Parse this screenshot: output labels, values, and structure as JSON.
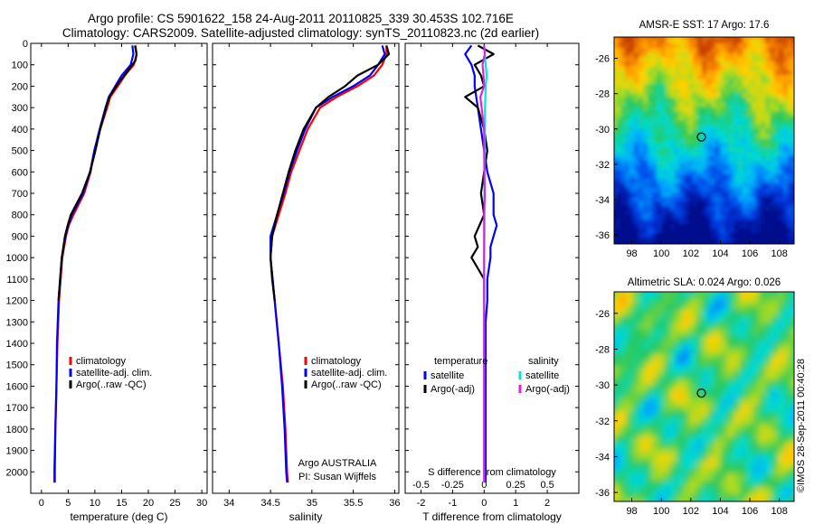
{
  "title": {
    "line1": "Argo profile: CS 5901622_158 24-Aug-2011 20110825_339 30.453S 102.716E",
    "line2": "Climatology: CARS2009. Satellite-adjusted climatology: synTS_20110823.nc (2d earlier)"
  },
  "credit": "©IMOS 28-Sep-2011 00:40:28",
  "colors": {
    "climatology": "#ff0000",
    "satellite": "#0000ff",
    "argo": "#000000",
    "sal_satellite": "#00e5e5",
    "sal_argo": "#e020e0"
  },
  "chart_data": [
    {
      "type": "line",
      "xlabel": "temperature (deg C)",
      "ylabel": "",
      "xlim": [
        -2,
        31
      ],
      "ylim": [
        2100,
        0
      ],
      "xticks": [
        0,
        5,
        10,
        15,
        20,
        25,
        30
      ],
      "yticks": [
        0,
        100,
        200,
        300,
        400,
        500,
        600,
        700,
        800,
        900,
        1000,
        1100,
        1200,
        1300,
        1400,
        1500,
        1600,
        1700,
        1800,
        1900,
        2000
      ],
      "legend": [
        "climatology",
        "satellite-adj. clim.",
        "Argo(..raw -QC)"
      ],
      "series": [
        {
          "name": "climatology",
          "color": "#ff0000",
          "depth": [
            10,
            50,
            100,
            150,
            200,
            250,
            300,
            400,
            500,
            600,
            700,
            800,
            850,
            900,
            1000,
            1200,
            1400,
            1600,
            1800,
            2000,
            2050
          ],
          "values": [
            17.6,
            17.8,
            17.3,
            15.6,
            14.3,
            12.9,
            12.3,
            11.0,
            9.9,
            9.2,
            8.0,
            6.0,
            5.1,
            4.6,
            3.9,
            3.3,
            3.0,
            2.8,
            2.6,
            2.4,
            2.4
          ]
        },
        {
          "name": "satellite-adj. clim.",
          "color": "#0000ff",
          "depth": [
            10,
            50,
            100,
            150,
            200,
            250,
            300,
            400,
            500,
            600,
            700,
            800,
            850,
            900,
            1000,
            1200,
            1400,
            1600,
            1800,
            2000,
            2050
          ],
          "values": [
            17.0,
            17.2,
            16.7,
            15.0,
            13.8,
            12.6,
            12.0,
            10.9,
            9.9,
            9.1,
            7.8,
            5.7,
            5.0,
            4.5,
            3.8,
            3.2,
            2.9,
            2.8,
            2.6,
            2.5,
            2.5
          ]
        },
        {
          "name": "Argo(..raw -QC)",
          "color": "#000000",
          "depth": [
            10,
            50,
            80,
            100,
            150,
            200,
            250,
            300,
            400,
            500,
            600,
            700,
            800,
            850,
            900,
            1000,
            1100,
            1200
          ],
          "values": [
            17.5,
            17.8,
            17.6,
            17.0,
            15.5,
            14.0,
            12.7,
            12.1,
            11.0,
            10.1,
            9.1,
            7.6,
            5.5,
            4.9,
            4.4,
            3.8,
            3.5,
            3.2
          ]
        }
      ]
    },
    {
      "type": "line",
      "xlabel": "salinity",
      "ylabel": "",
      "xlim": [
        33.8,
        36.05
      ],
      "ylim": [
        2100,
        0
      ],
      "xticks": [
        34,
        34.5,
        35,
        35.5,
        36
      ],
      "legend": [
        "climatology",
        "satellite-adj. clim.",
        "Argo(..raw -QC)"
      ],
      "notes": [
        "Argo AUSTRALIA",
        "PI: Susan Wijffels"
      ],
      "series": [
        {
          "name": "climatology",
          "color": "#ff0000",
          "depth": [
            10,
            50,
            100,
            150,
            200,
            250,
            300,
            400,
            500,
            600,
            700,
            800,
            900,
            1000,
            1200,
            1400,
            1600,
            1800,
            2000,
            2050
          ],
          "values": [
            35.9,
            35.9,
            35.85,
            35.75,
            35.55,
            35.3,
            35.1,
            34.95,
            34.85,
            34.75,
            34.68,
            34.6,
            34.52,
            34.5,
            34.55,
            34.6,
            34.65,
            34.68,
            34.7,
            34.71
          ]
        },
        {
          "name": "satellite-adj. clim.",
          "color": "#0000ff",
          "depth": [
            10,
            50,
            100,
            150,
            200,
            250,
            300,
            400,
            500,
            600,
            700,
            800,
            900,
            1000,
            1200,
            1400,
            1600,
            1800,
            2000,
            2050
          ],
          "values": [
            35.85,
            35.88,
            35.8,
            35.7,
            35.5,
            35.25,
            35.05,
            34.92,
            34.82,
            34.73,
            34.66,
            34.58,
            34.5,
            34.5,
            34.55,
            34.6,
            34.64,
            34.67,
            34.69,
            34.7
          ]
        },
        {
          "name": "Argo(..raw -QC)",
          "color": "#000000",
          "depth": [
            10,
            50,
            100,
            150,
            200,
            250,
            300,
            400,
            500,
            600,
            700,
            800,
            900,
            1000,
            1100,
            1200
          ],
          "values": [
            35.9,
            35.93,
            35.8,
            35.55,
            35.4,
            35.2,
            35.05,
            34.9,
            34.8,
            34.72,
            34.65,
            34.58,
            34.52,
            34.5,
            34.52,
            34.55
          ]
        }
      ]
    },
    {
      "type": "line",
      "xlabel": "T difference from climatology",
      "xlabel_top": "S difference from climatology",
      "xlim": [
        -2.5,
        3.0
      ],
      "ylim": [
        2100,
        0
      ],
      "xticks": [
        -2,
        -1,
        0,
        1,
        2
      ],
      "xticks_top": [
        -0.5,
        -0.25,
        0,
        0.25,
        0.5
      ],
      "legend_titles": [
        "temperature",
        "salinity"
      ],
      "legend": [
        "satellite",
        "Argo(-adj)",
        "satellite",
        "Argo(-adj)"
      ],
      "series": [
        {
          "name": "temperature satellite",
          "color": "#0000ff",
          "depth": [
            10,
            50,
            100,
            150,
            200,
            300,
            400,
            500,
            600,
            700,
            800,
            850,
            900,
            950,
            1000,
            1100,
            1200,
            1300,
            1400,
            1500,
            1600,
            1800,
            2000,
            2050
          ],
          "values": [
            -0.4,
            -0.6,
            -0.4,
            -0.3,
            -0.3,
            -0.2,
            -0.1,
            0.0,
            0.1,
            0.3,
            0.3,
            0.4,
            0.3,
            0.2,
            0.2,
            0.1,
            0.1,
            0.05,
            0.05,
            0.05,
            0.05,
            0.05,
            0.05,
            0.05
          ]
        },
        {
          "name": "temperature Argo(-adj)",
          "color": "#000000",
          "depth": [
            10,
            50,
            100,
            150,
            200,
            250,
            300,
            400,
            500,
            600,
            700,
            800,
            900,
            950,
            1000,
            1050,
            1100,
            1200
          ],
          "values": [
            -0.2,
            0.3,
            -0.3,
            -0.1,
            0.0,
            -0.6,
            -0.2,
            0.0,
            0.1,
            0.0,
            -0.1,
            0.0,
            -0.3,
            -0.2,
            -0.4,
            -0.2,
            0.0,
            0.0
          ]
        },
        {
          "name": "salinity satellite",
          "color": "#00e5e5",
          "depth": [
            10,
            50,
            100,
            150,
            200,
            300,
            400,
            500,
            600,
            700,
            800,
            900,
            1000,
            1200,
            1400,
            1600,
            1800,
            2000,
            2050
          ],
          "values": [
            0.0,
            0.02,
            0.05,
            0.08,
            0.05,
            0.03,
            0.02,
            0.02,
            0.01,
            0.01,
            0.01,
            0.01,
            0.0,
            0.0,
            0.0,
            0.0,
            0.0,
            0.0,
            0.0
          ]
        },
        {
          "name": "salinity Argo(-adj)",
          "color": "#e020e0",
          "depth": [
            10,
            50,
            100,
            150,
            200,
            250,
            300,
            400,
            500,
            600,
            700,
            800,
            900,
            1000,
            1100,
            1200,
            1400,
            1600,
            1800,
            2000,
            2050
          ],
          "values": [
            0.0,
            0.02,
            -0.05,
            -0.02,
            0.0,
            -0.12,
            -0.08,
            0.0,
            0.0,
            0.01,
            0.02,
            0.0,
            0.0,
            0.0,
            0.0,
            0.0,
            0.0,
            0.0,
            0.0,
            0.0,
            0.0
          ]
        }
      ]
    },
    {
      "type": "heatmap",
      "title": "AMSR-E SST: 17 Argo: 17.6",
      "xlim": [
        96.8,
        109
      ],
      "ylim": [
        -36.5,
        -24.8
      ],
      "xticks": [
        98,
        100,
        102,
        104,
        106,
        108
      ],
      "yticks": [
        -26,
        -28,
        -30,
        -32,
        -34,
        -36
      ],
      "marker": {
        "lon": 102.716,
        "lat": -30.453
      }
    },
    {
      "type": "heatmap",
      "title": "Altimetric SLA: 0.024 Argo: 0.026",
      "xlim": [
        96.8,
        109
      ],
      "ylim": [
        -36.5,
        -24.8
      ],
      "xticks": [
        98,
        100,
        102,
        104,
        106,
        108
      ],
      "yticks": [
        -26,
        -28,
        -30,
        -32,
        -34,
        -36
      ],
      "marker": {
        "lon": 102.716,
        "lat": -30.453
      }
    }
  ]
}
